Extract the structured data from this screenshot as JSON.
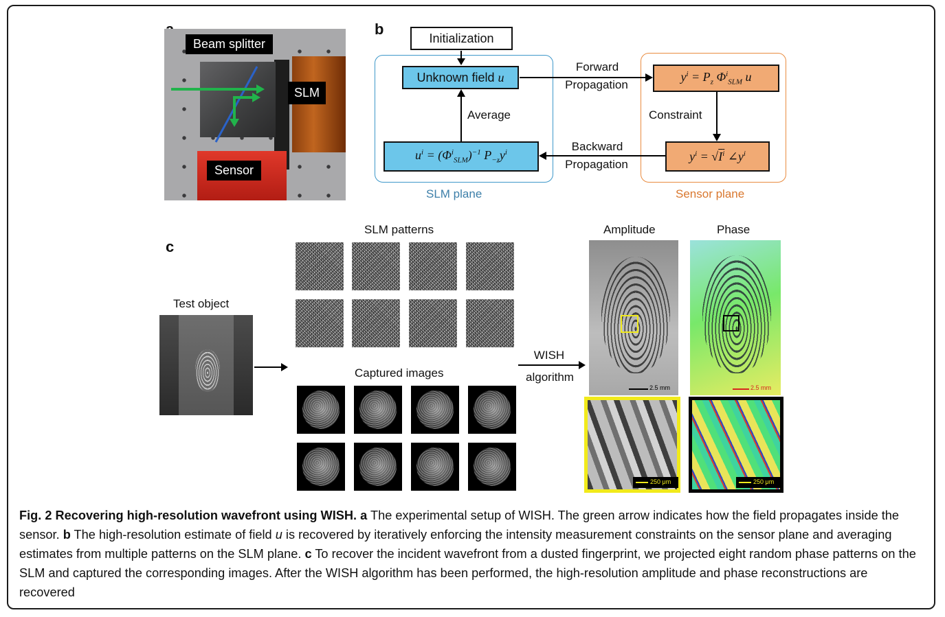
{
  "panel_labels": {
    "a": "a",
    "b": "b",
    "c": "c"
  },
  "panel_a": {
    "beam_splitter_label": "Beam splitter",
    "slm_label": "SLM",
    "sensor_label": "Sensor"
  },
  "panel_b": {
    "initialization": "Initialization",
    "unknown_field": "Unknown field u",
    "forward_line1": "Forward",
    "forward_line2": "Propagation",
    "backward_line1": "Backward",
    "backward_line2": "Propagation",
    "average": "Average",
    "constraint": "Constraint",
    "slm_plane": "SLM plane",
    "sensor_plane": "Sensor plane",
    "colors": {
      "slm_region": "#3d97c9",
      "sensor_region": "#e98b3f",
      "blue_box": "#6cc6ea",
      "orange_box": "#f1aa74"
    }
  },
  "panel_c": {
    "test_object": "Test object",
    "slm_patterns": "SLM patterns",
    "captured_images": "Captured images",
    "wish_line1": "WISH",
    "wish_line2": "algorithm",
    "amplitude": "Amplitude",
    "phase": "Phase",
    "scale_large": "2.5 mm",
    "scale_small": "250 μm"
  },
  "caption": {
    "fig_title": "Fig. 2 Recovering high-resolution wavefront using WISH.",
    "a_letter": "a",
    "a_text": " The experimental setup of WISH. The green arrow indicates how the field propagates inside the sensor. ",
    "b_letter": "b",
    "b_text_1": " The high-resolution estimate of field ",
    "b_var": "u",
    "b_text_2": " is recovered by iteratively enforcing the intensity measurement constraints on the sensor plane and averaging estimates from multiple patterns on the SLM plane. ",
    "c_letter": "c",
    "c_text": " To recover the incident wavefront from a dusted fingerprint, we projected eight random phase patterns on the SLM and captured the corresponding images. After the WISH algorithm has been performed, the high-resolution amplitude and phase reconstructions are recovered"
  }
}
